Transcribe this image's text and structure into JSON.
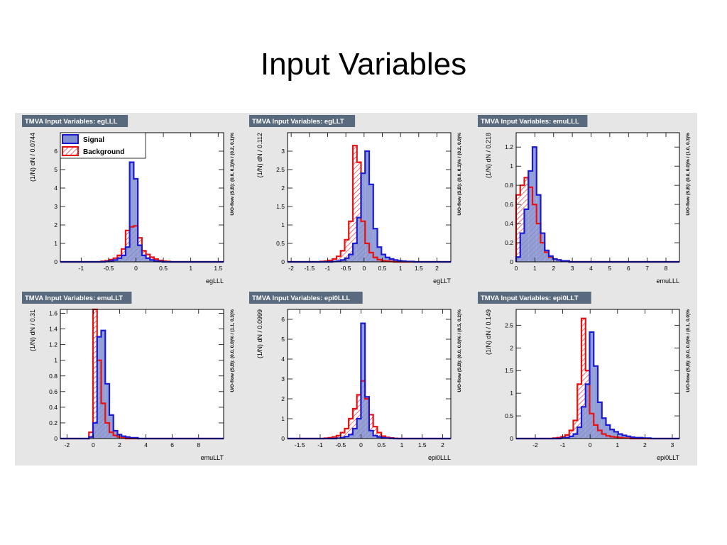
{
  "slide": {
    "title": "Input Variables"
  },
  "legend": {
    "signal": "Signal",
    "background": "Background"
  },
  "colors": {
    "signal_line": "#1a1ad6",
    "signal_fill": "#7f8fd0",
    "background_line": "#e81010",
    "panel_bg": "#e6e6e6",
    "header_bg": "#5a6a7e"
  },
  "chart_data": [
    {
      "type": "bar",
      "title": "TMVA Input Variables: egLLL",
      "xlabel": "egLLL",
      "ylabel": "(1/N) dN  / 0.0744",
      "overflow_label": "U/O-flow (S,B): (0.0, 0.1)% / (0.2, 0.1)%",
      "xlim": [
        -1.38,
        1.6
      ],
      "ylim": [
        0,
        7
      ],
      "xticks": [
        -1,
        -0.5,
        0,
        0.5,
        1,
        1.5
      ],
      "yticks": [
        0,
        1,
        2,
        3,
        4,
        5,
        6
      ],
      "bin_start": -1.38,
      "bin_width": 0.0744,
      "series": [
        {
          "name": "Signal",
          "values": [
            0,
            0,
            0,
            0,
            0,
            0,
            0,
            0,
            0,
            0,
            0,
            0.02,
            0.05,
            0.1,
            0.2,
            0.35,
            0.8,
            5.4,
            4.5,
            0.9,
            0.35,
            0.2,
            0.1,
            0.05,
            0.02,
            0,
            0,
            0,
            0,
            0,
            0,
            0,
            0,
            0,
            0,
            0,
            0,
            0,
            0,
            0
          ]
        },
        {
          "name": "Background",
          "values": [
            0,
            0,
            0,
            0,
            0,
            0,
            0,
            0,
            0,
            0,
            0.03,
            0.06,
            0.12,
            0.2,
            0.35,
            0.7,
            1.7,
            1.9,
            1.95,
            1.3,
            0.6,
            0.4,
            0.25,
            0.15,
            0.08,
            0.04,
            0.02,
            0,
            0,
            0,
            0,
            0,
            0,
            0,
            0,
            0,
            0,
            0,
            0,
            0
          ]
        }
      ]
    },
    {
      "type": "bar",
      "title": "TMVA Input Variables: egLLT",
      "xlabel": "egLLT",
      "ylabel": "(1/N) dN  / 0.112",
      "overflow_label": "U/O-flow (S,B): (0.0, 0.1)% / (0.2, 0.0)%",
      "xlim": [
        -2.1,
        2.38
      ],
      "ylim": [
        0,
        3.5
      ],
      "xticks": [
        -2,
        -1.5,
        -1,
        -0.5,
        0,
        0.5,
        1,
        1.5,
        2
      ],
      "yticks": [
        0,
        0.5,
        1,
        1.5,
        2,
        2.5,
        3
      ],
      "bin_start": -2.1,
      "bin_width": 0.112,
      "series": [
        {
          "name": "Signal",
          "values": [
            0,
            0,
            0,
            0,
            0,
            0,
            0,
            0,
            0,
            0,
            0,
            0.01,
            0.02,
            0.05,
            0.1,
            0.2,
            0.5,
            1.2,
            2.4,
            3.0,
            2.1,
            0.9,
            0.4,
            0.2,
            0.12,
            0.08,
            0.05,
            0.03,
            0.02,
            0.01,
            0.01,
            0,
            0,
            0,
            0,
            0,
            0,
            0,
            0,
            0
          ]
        },
        {
          "name": "Background",
          "values": [
            0,
            0,
            0,
            0,
            0,
            0,
            0,
            0,
            0.01,
            0.02,
            0.04,
            0.08,
            0.15,
            0.3,
            0.6,
            1.1,
            3.15,
            2.7,
            1.1,
            0.5,
            0.25,
            0.12,
            0.06,
            0.03,
            0.02,
            0.01,
            0,
            0,
            0,
            0,
            0,
            0,
            0,
            0,
            0,
            0,
            0,
            0,
            0,
            0
          ]
        }
      ]
    },
    {
      "type": "bar",
      "title": "TMVA Input Variables: emuLLL",
      "xlabel": "emuLLL",
      "ylabel": "(1/N) dN  / 0.218",
      "overflow_label": "U/O-flow (S,B): (0.0, 0.0)% / (1.0, 0.3)%",
      "xlim": [
        0,
        8.72
      ],
      "ylim": [
        0,
        1.35
      ],
      "xticks": [
        0,
        1,
        2,
        3,
        4,
        5,
        6,
        7,
        8
      ],
      "yticks": [
        0,
        0.2,
        0.4,
        0.6,
        0.8,
        1,
        1.2
      ],
      "bin_start": 0,
      "bin_width": 0.218,
      "series": [
        {
          "name": "Signal",
          "values": [
            0.05,
            0.3,
            0.55,
            0.95,
            1.2,
            0.7,
            0.3,
            0.12,
            0.06,
            0.03,
            0.02,
            0.01,
            0.01,
            0,
            0,
            0,
            0,
            0,
            0,
            0,
            0,
            0,
            0,
            0,
            0,
            0,
            0,
            0,
            0,
            0,
            0,
            0,
            0,
            0,
            0,
            0,
            0,
            0,
            0,
            0
          ]
        },
        {
          "name": "Background",
          "values": [
            0.7,
            0.8,
            0.88,
            0.78,
            0.6,
            0.4,
            0.2,
            0.1,
            0.05,
            0.03,
            0.02,
            0.01,
            0.01,
            0,
            0,
            0,
            0,
            0,
            0,
            0,
            0,
            0,
            0,
            0,
            0,
            0,
            0,
            0,
            0,
            0,
            0,
            0,
            0,
            0,
            0,
            0,
            0,
            0,
            0,
            0
          ]
        }
      ]
    },
    {
      "type": "bar",
      "title": "TMVA Input Variables: emuLLT",
      "xlabel": "emuLLT",
      "ylabel": "(1/N) dN  / 0.31",
      "overflow_label": "U/O-flow (S,B): (0.0, 0.0)% / (1.1, 0.3)%",
      "xlim": [
        -2.5,
        9.9
      ],
      "ylim": [
        0,
        1.65
      ],
      "xticks": [
        -2,
        0,
        2,
        4,
        6,
        8
      ],
      "yticks": [
        0,
        0.2,
        0.4,
        0.6,
        0.8,
        1,
        1.2,
        1.4,
        1.6
      ],
      "bin_start": -2.5,
      "bin_width": 0.31,
      "series": [
        {
          "name": "Signal",
          "values": [
            0,
            0,
            0,
            0,
            0,
            0,
            0,
            0.02,
            0.2,
            1.3,
            1.38,
            0.7,
            0.3,
            0.1,
            0.05,
            0.03,
            0.02,
            0.01,
            0.01,
            0,
            0,
            0,
            0,
            0,
            0,
            0,
            0,
            0,
            0,
            0,
            0,
            0,
            0,
            0,
            0,
            0,
            0,
            0,
            0,
            0
          ]
        },
        {
          "name": "Background",
          "values": [
            0,
            0,
            0,
            0,
            0,
            0,
            0,
            0.08,
            1.65,
            1.0,
            0.45,
            0.2,
            0.08,
            0.04,
            0.02,
            0.01,
            0,
            0,
            0,
            0,
            0,
            0,
            0,
            0,
            0,
            0,
            0,
            0,
            0,
            0,
            0,
            0,
            0,
            0,
            0,
            0,
            0,
            0,
            0,
            0
          ]
        }
      ]
    },
    {
      "type": "bar",
      "title": "TMVA Input Variables: epi0LLL",
      "xlabel": "epi0LLL",
      "ylabel": "(1/N) dN  / 0.0999",
      "overflow_label": "U/O-flow (S,B): (0.0, 0.0)% / (0.5, 0.2)%",
      "xlim": [
        -1.8,
        2.2
      ],
      "ylim": [
        0,
        6.5
      ],
      "xticks": [
        -1.5,
        -1,
        -0.5,
        0,
        0.5,
        1,
        1.5,
        2
      ],
      "yticks": [
        0,
        1,
        2,
        3,
        4,
        5,
        6
      ],
      "bin_start": -1.8,
      "bin_width": 0.0999,
      "series": [
        {
          "name": "Signal",
          "values": [
            0,
            0,
            0,
            0,
            0,
            0,
            0,
            0,
            0,
            0,
            0,
            0,
            0.02,
            0.05,
            0.1,
            0.2,
            0.5,
            1.0,
            5.8,
            2.1,
            0.4,
            0.15,
            0.08,
            0.04,
            0.02,
            0.01,
            0,
            0,
            0,
            0,
            0,
            0,
            0,
            0,
            0,
            0,
            0,
            0,
            0,
            0
          ]
        },
        {
          "name": "Background",
          "values": [
            0,
            0,
            0,
            0,
            0,
            0,
            0,
            0,
            0,
            0.02,
            0.04,
            0.08,
            0.15,
            0.3,
            0.5,
            1.0,
            1.5,
            2.2,
            2.9,
            2.0,
            1.2,
            0.6,
            0.3,
            0.12,
            0.06,
            0.03,
            0.01,
            0,
            0,
            0,
            0,
            0,
            0,
            0,
            0,
            0,
            0,
            0,
            0,
            0
          ]
        }
      ]
    },
    {
      "type": "bar",
      "title": "TMVA Input Variables: epi0LLT",
      "xlabel": "epi0LLT",
      "ylabel": "(1/N) dN  / 0.149",
      "overflow_label": "U/O-flow (S,B): (0.0, 0.0)% / (0.1, 0.0)%",
      "xlim": [
        -2.7,
        3.26
      ],
      "ylim": [
        0,
        2.85
      ],
      "xticks": [
        -2,
        -1,
        0,
        1,
        2,
        3
      ],
      "yticks": [
        0,
        0.5,
        1,
        1.5,
        2,
        2.5
      ],
      "bin_start": -2.7,
      "bin_width": 0.149,
      "series": [
        {
          "name": "Signal",
          "values": [
            0,
            0,
            0,
            0,
            0,
            0,
            0,
            0,
            0,
            0,
            0,
            0.01,
            0.02,
            0.05,
            0.1,
            0.25,
            0.7,
            1.2,
            2.35,
            1.6,
            0.8,
            0.45,
            0.3,
            0.2,
            0.15,
            0.1,
            0.07,
            0.05,
            0.03,
            0.02,
            0.02,
            0.01,
            0.01,
            0,
            0,
            0,
            0,
            0,
            0,
            0
          ]
        },
        {
          "name": "Background",
          "values": [
            0,
            0,
            0,
            0,
            0,
            0,
            0,
            0,
            0,
            0.01,
            0.02,
            0.04,
            0.08,
            0.18,
            0.4,
            1.2,
            2.65,
            1.5,
            0.55,
            0.3,
            0.18,
            0.1,
            0.06,
            0.04,
            0.03,
            0.02,
            0.01,
            0.01,
            0,
            0,
            0,
            0,
            0,
            0,
            0,
            0,
            0,
            0,
            0,
            0
          ]
        }
      ]
    }
  ]
}
